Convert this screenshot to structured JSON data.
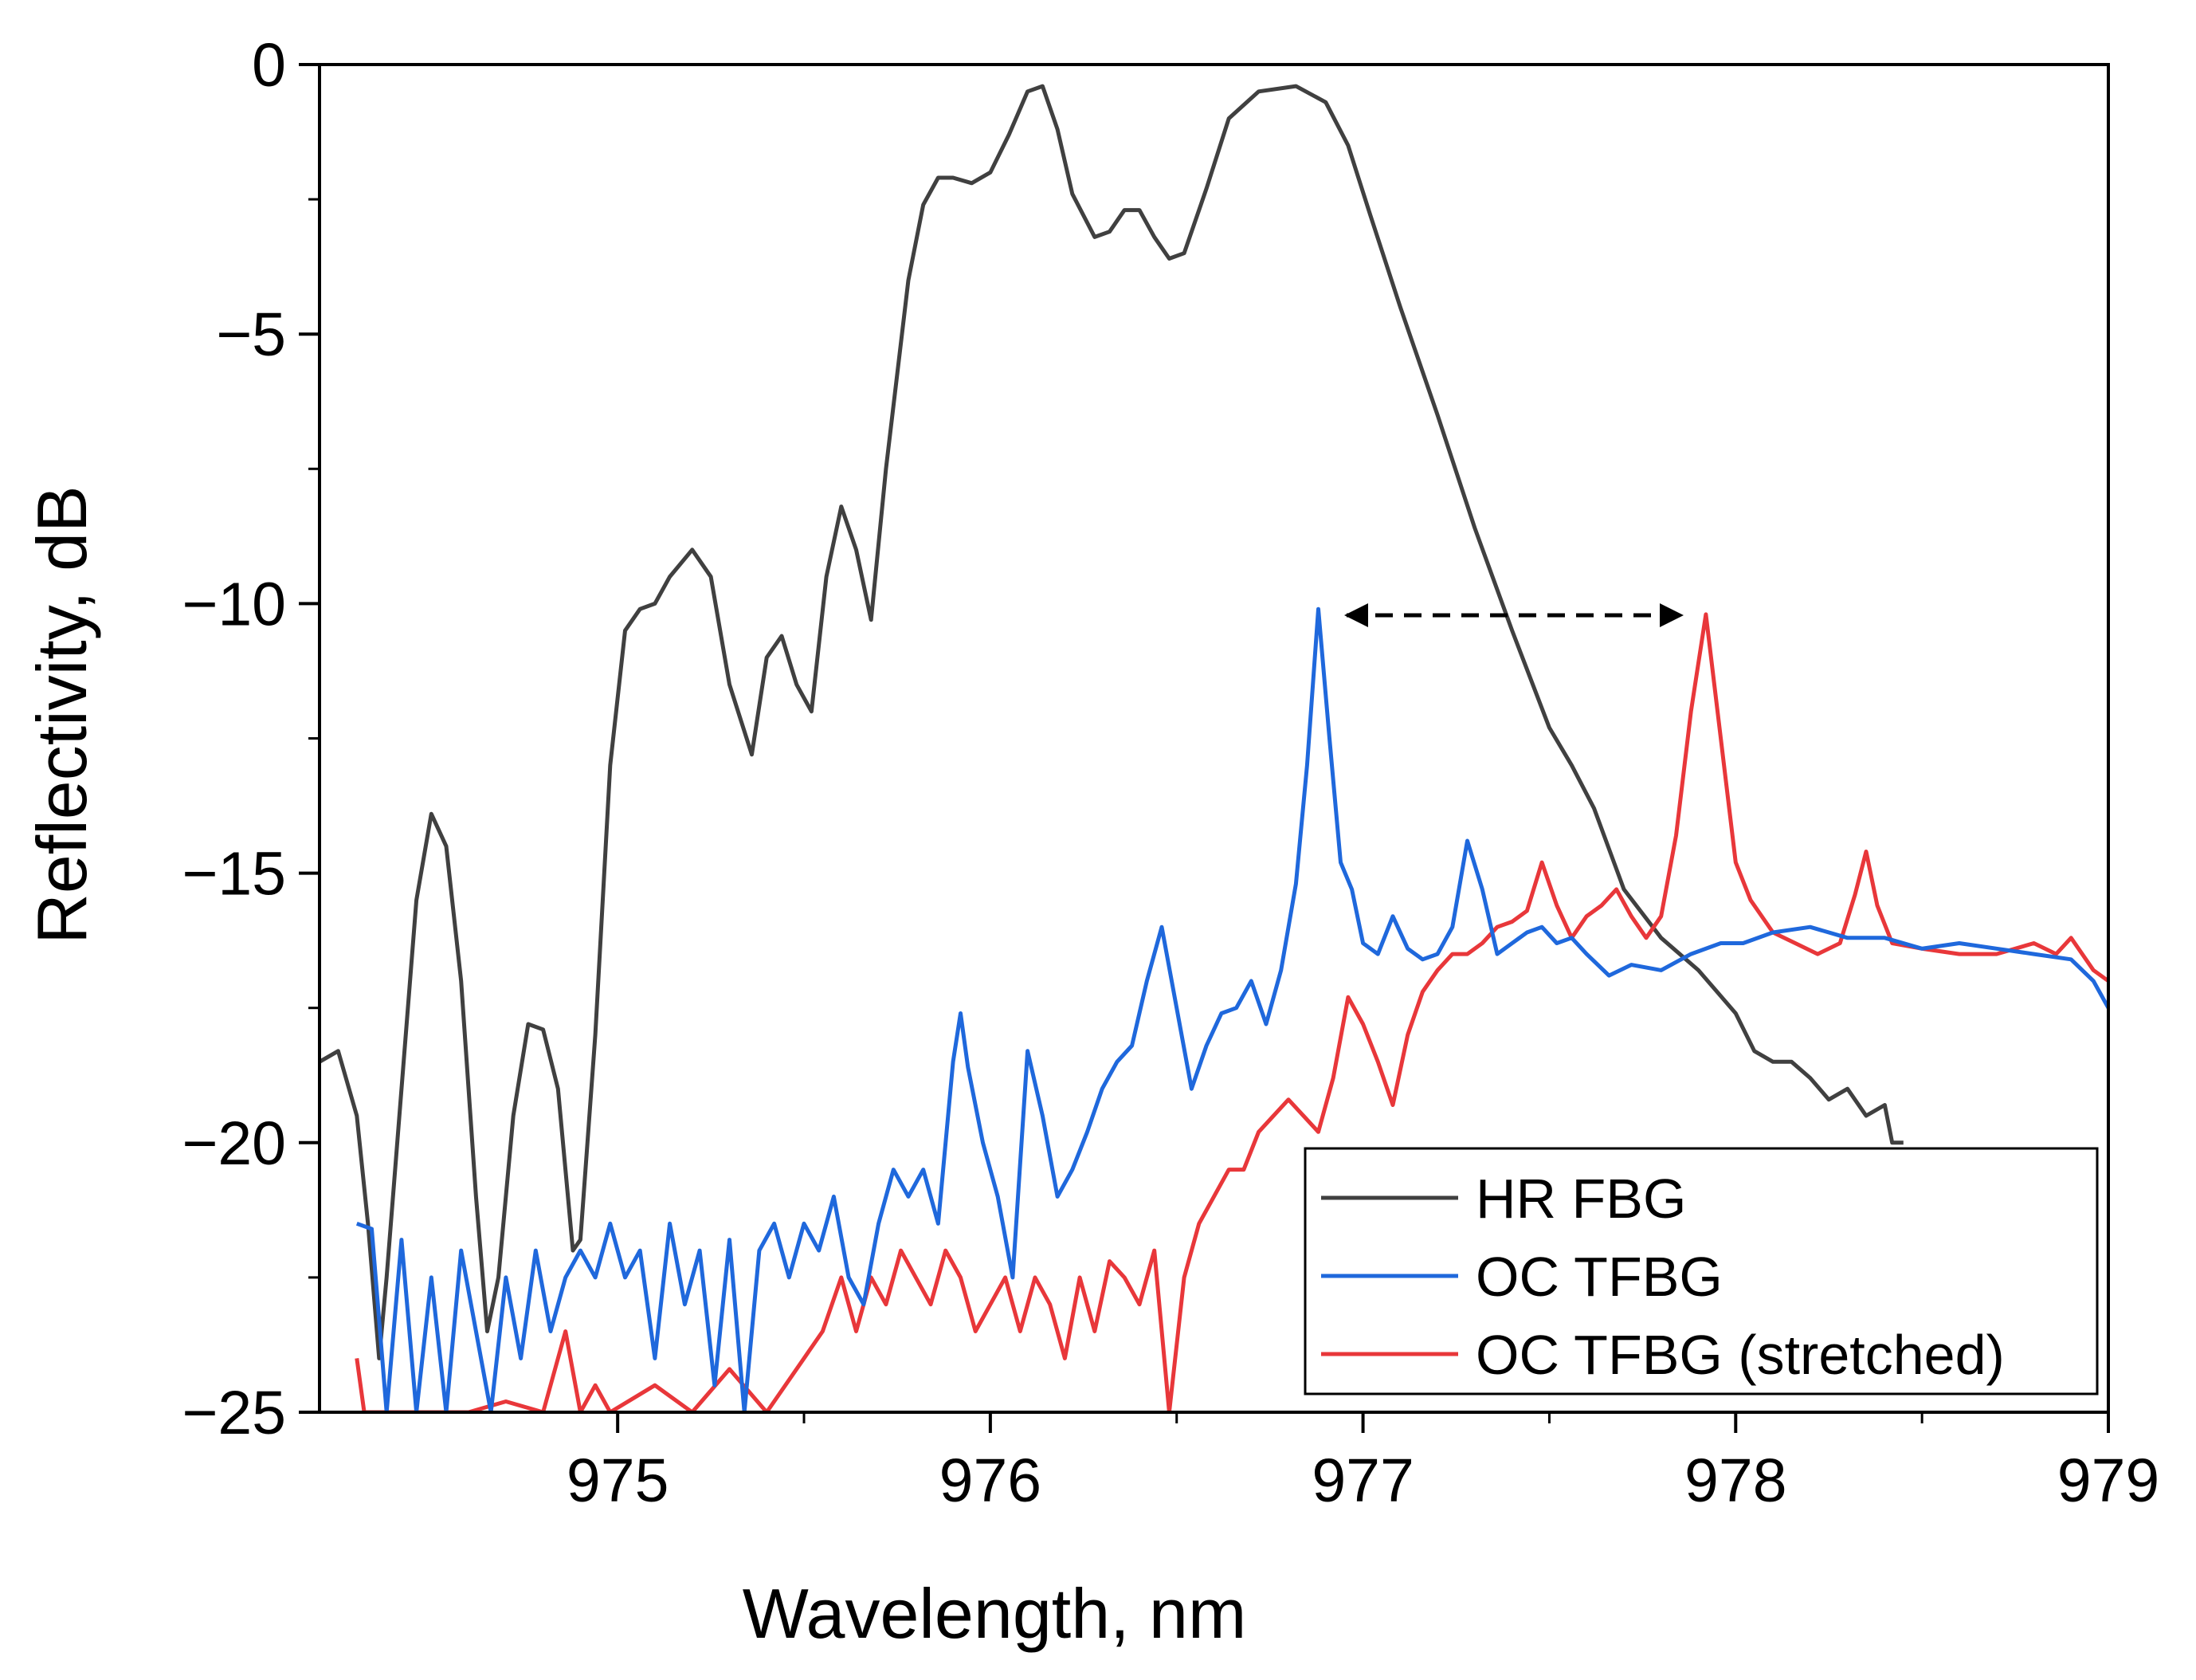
{
  "chart_data": {
    "type": "line",
    "xlabel": "Wavelength, nm",
    "ylabel": "Reflectivity, dB",
    "xlim": [
      974.2,
      979
    ],
    "xticks": [
      975,
      976,
      977,
      978,
      979
    ],
    "ylim": [
      -25,
      0
    ],
    "yticks": [
      {
        "value": -25,
        "label": "−25"
      },
      {
        "value": -20,
        "label": "−20"
      },
      {
        "value": -15,
        "label": "−15"
      },
      {
        "value": -10,
        "label": "−10"
      },
      {
        "value": -5,
        "label": "−5"
      },
      0
    ],
    "legend": "lower right",
    "series": [
      {
        "name": "HR FBG",
        "color": "#404040",
        "x": [
          974.2,
          974.25,
          974.3,
          974.33,
          974.36,
          974.38,
          974.42,
          974.46,
          974.5,
          974.54,
          974.58,
          974.62,
          974.65,
          974.68,
          974.72,
          974.76,
          974.8,
          974.84,
          974.88,
          974.9,
          974.94,
          974.98,
          975.02,
          975.06,
          975.1,
          975.14,
          975.2,
          975.25,
          975.3,
          975.36,
          975.4,
          975.44,
          975.48,
          975.52,
          975.56,
          975.6,
          975.64,
          975.68,
          975.72,
          975.78,
          975.82,
          975.86,
          975.9,
          975.95,
          976.0,
          976.05,
          976.1,
          976.14,
          976.18,
          976.22,
          976.28,
          976.32,
          976.36,
          976.4,
          976.44,
          976.48,
          976.52,
          976.58,
          976.64,
          976.72,
          976.82,
          976.9,
          976.96,
          977.02,
          977.1,
          977.2,
          977.3,
          977.4,
          977.5,
          977.56,
          977.62,
          977.7,
          977.8,
          977.9,
          978.0,
          978.05,
          978.1,
          978.15,
          978.2,
          978.25,
          978.3,
          978.35,
          978.4,
          978.42,
          978.45
        ],
        "values": [
          -18.5,
          -18.3,
          -19.5,
          -21.5,
          -24,
          -22.5,
          -19,
          -15.5,
          -13.9,
          -14.5,
          -17,
          -21,
          -23.5,
          -22.5,
          -19.5,
          -17.8,
          -17.9,
          -19,
          -22,
          -21.8,
          -18,
          -13,
          -10.5,
          -10.1,
          -10.0,
          -9.5,
          -9.0,
          -9.5,
          -11.5,
          -12.8,
          -11,
          -10.6,
          -11.5,
          -12,
          -9.5,
          -8.2,
          -9,
          -10.3,
          -7.5,
          -4,
          -2.6,
          -2.1,
          -2.1,
          -2.2,
          -2.0,
          -1.3,
          -0.5,
          -0.4,
          -1.2,
          -2.4,
          -3.2,
          -3.1,
          -2.7,
          -2.7,
          -3.2,
          -3.6,
          -3.5,
          -2.3,
          -1.0,
          -0.5,
          -0.4,
          -0.7,
          -1.5,
          -2.8,
          -4.5,
          -6.5,
          -8.6,
          -10.5,
          -12.3,
          -13.0,
          -13.8,
          -15.3,
          -16.2,
          -16.8,
          -17.6,
          -18.3,
          -18.5,
          -18.5,
          -18.8,
          -19.2,
          -19.0,
          -19.5,
          -19.3,
          -20,
          -20.0
        ]
      },
      {
        "name": "OC TFBG",
        "color": "#1f68dc",
        "x": [
          974.3,
          974.34,
          974.38,
          974.42,
          974.46,
          974.5,
          974.54,
          974.58,
          974.62,
          974.66,
          974.7,
          974.74,
          974.78,
          974.82,
          974.86,
          974.9,
          974.94,
          974.98,
          975.02,
          975.06,
          975.1,
          975.14,
          975.18,
          975.22,
          975.26,
          975.3,
          975.34,
          975.38,
          975.42,
          975.46,
          975.5,
          975.54,
          975.58,
          975.62,
          975.66,
          975.7,
          975.74,
          975.78,
          975.82,
          975.86,
          975.9,
          975.92,
          975.94,
          975.98,
          976.02,
          976.06,
          976.1,
          976.14,
          976.18,
          976.22,
          976.26,
          976.3,
          976.34,
          976.38,
          976.42,
          976.46,
          976.5,
          976.54,
          976.58,
          976.62,
          976.66,
          976.7,
          976.74,
          976.78,
          976.82,
          976.85,
          976.88,
          976.91,
          976.94,
          976.97,
          977.0,
          977.04,
          977.08,
          977.12,
          977.16,
          977.2,
          977.24,
          977.28,
          977.32,
          977.36,
          977.4,
          977.44,
          977.48,
          977.52,
          977.56,
          977.6,
          977.66,
          977.72,
          977.8,
          977.88,
          977.96,
          978.02,
          978.1,
          978.2,
          978.3,
          978.4,
          978.5,
          978.6,
          978.7,
          978.8,
          978.9,
          978.96,
          979.0
        ],
        "values": [
          -21.5,
          -21.6,
          -25,
          -21.8,
          -25,
          -22.5,
          -25,
          -22,
          -23.5,
          -25,
          -22.5,
          -24,
          -22,
          -23.5,
          -22.5,
          -22,
          -22.5,
          -21.5,
          -22.5,
          -22,
          -24,
          -21.5,
          -23,
          -22,
          -24.5,
          -21.8,
          -25,
          -22,
          -21.5,
          -22.5,
          -21.5,
          -22,
          -21,
          -22.5,
          -23,
          -21.5,
          -20.5,
          -21,
          -20.5,
          -21.5,
          -18.5,
          -17.6,
          -18.6,
          -20,
          -21,
          -22.5,
          -18.3,
          -19.5,
          -21,
          -20.5,
          -19.8,
          -19,
          -18.5,
          -18.2,
          -17,
          -16,
          -17.5,
          -19,
          -18.2,
          -17.6,
          -17.5,
          -17,
          -17.8,
          -16.8,
          -15.2,
          -13,
          -10.1,
          -12.5,
          -14.8,
          -15.3,
          -16.3,
          -16.5,
          -15.8,
          -16.4,
          -16.6,
          -16.5,
          -16.0,
          -14.4,
          -15.3,
          -16.5,
          -16.3,
          -16.1,
          -16.0,
          -16.3,
          -16.2,
          -16.5,
          -16.9,
          -16.7,
          -16.8,
          -16.5,
          -16.3,
          -16.3,
          -16.1,
          -16.0,
          -16.2,
          -16.2,
          -16.4,
          -16.3,
          -16.4,
          -16.5,
          -16.6,
          -17.0,
          -17.5
        ]
      },
      {
        "name": "OC TFBG (stretched)",
        "color": "#e8373a",
        "x": [
          974.3,
          974.32,
          974.5,
          974.6,
          974.7,
          974.8,
          974.86,
          974.9,
          974.94,
          974.98,
          975.1,
          975.2,
          975.3,
          975.4,
          975.5,
          975.55,
          975.6,
          975.64,
          975.68,
          975.72,
          975.76,
          975.8,
          975.84,
          975.88,
          975.92,
          975.96,
          976.0,
          976.04,
          976.08,
          976.12,
          976.16,
          976.2,
          976.24,
          976.28,
          976.32,
          976.36,
          976.4,
          976.44,
          976.48,
          976.52,
          976.56,
          976.6,
          976.64,
          976.68,
          976.72,
          976.76,
          976.8,
          976.84,
          976.88,
          976.92,
          976.96,
          977.0,
          977.04,
          977.08,
          977.12,
          977.16,
          977.2,
          977.24,
          977.28,
          977.32,
          977.36,
          977.4,
          977.44,
          977.48,
          977.52,
          977.56,
          977.6,
          977.64,
          977.68,
          977.72,
          977.76,
          977.8,
          977.84,
          977.88,
          977.92,
          977.96,
          978.0,
          978.04,
          978.1,
          978.16,
          978.22,
          978.28,
          978.32,
          978.35,
          978.38,
          978.42,
          978.5,
          978.6,
          978.7,
          978.8,
          978.86,
          978.9,
          978.96,
          979.0
        ],
        "values": [
          -24,
          -25,
          -25,
          -25,
          -24.8,
          -25,
          -23.5,
          -25,
          -24.5,
          -25,
          -24.5,
          -25,
          -24.2,
          -25,
          -24,
          -23.5,
          -22.5,
          -23.5,
          -22.5,
          -23,
          -22,
          -22.5,
          -23,
          -22,
          -22.5,
          -23.5,
          -23,
          -22.5,
          -23.5,
          -22.5,
          -23,
          -24,
          -22.5,
          -23.5,
          -22.2,
          -22.5,
          -23,
          -22,
          -25,
          -22.5,
          -21.5,
          -21,
          -20.5,
          -20.5,
          -19.8,
          -19.5,
          -19.2,
          -19.5,
          -19.8,
          -18.8,
          -17.3,
          -17.8,
          -18.5,
          -19.3,
          -18,
          -17.2,
          -16.8,
          -16.5,
          -16.5,
          -16.3,
          -16,
          -15.9,
          -15.7,
          -14.8,
          -15.6,
          -16.2,
          -15.8,
          -15.6,
          -15.3,
          -15.8,
          -16.2,
          -15.8,
          -14.3,
          -12,
          -10.2,
          -12.5,
          -14.8,
          -15.5,
          -16.1,
          -16.3,
          -16.5,
          -16.3,
          -15.4,
          -14.6,
          -15.6,
          -16.3,
          -16.4,
          -16.5,
          -16.5,
          -16.3,
          -16.5,
          -16.2,
          -16.8,
          -17.0
        ]
      }
    ]
  }
}
